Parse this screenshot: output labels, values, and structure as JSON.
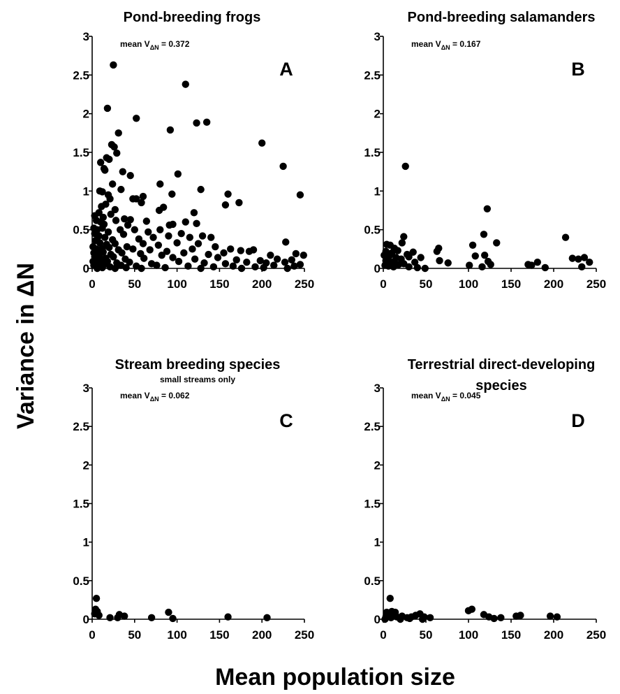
{
  "figure": {
    "xlabel": "Mean population size",
    "ylabel": "Variance in ΔN"
  },
  "chart_data": [
    {
      "type": "scatter",
      "title": "Pond-breeding frogs",
      "subtitle": "",
      "panel_label": "A",
      "mean_label": {
        "prefix": "mean V",
        "subscript": "ΔN",
        "value_text": " = 0.372"
      },
      "xlim": [
        0,
        250
      ],
      "ylim": [
        0,
        3
      ],
      "xticks": [
        0,
        50,
        100,
        150,
        200,
        250
      ],
      "yticks": [
        0,
        0.5,
        1,
        1.5,
        2,
        2.5,
        3
      ],
      "points": [
        [
          25,
          2.63
        ],
        [
          18,
          2.07
        ],
        [
          110,
          2.38
        ],
        [
          52,
          1.94
        ],
        [
          123,
          1.88
        ],
        [
          135,
          1.89
        ],
        [
          92,
          1.79
        ],
        [
          31,
          1.75
        ],
        [
          200,
          1.62
        ],
        [
          23,
          1.6
        ],
        [
          26,
          1.57
        ],
        [
          17,
          1.43
        ],
        [
          20,
          1.41
        ],
        [
          29,
          1.49
        ],
        [
          225,
          1.32
        ],
        [
          10,
          1.37
        ],
        [
          14,
          1.29
        ],
        [
          15,
          1.27
        ],
        [
          36,
          1.25
        ],
        [
          45,
          1.2
        ],
        [
          101,
          1.22
        ],
        [
          24,
          1.09
        ],
        [
          80,
          1.09
        ],
        [
          128,
          1.02
        ],
        [
          34,
          1.02
        ],
        [
          9,
          1.0
        ],
        [
          12,
          0.99
        ],
        [
          94,
          0.96
        ],
        [
          160,
          0.96
        ],
        [
          245,
          0.95
        ],
        [
          19,
          0.95
        ],
        [
          21,
          0.9
        ],
        [
          60,
          0.93
        ],
        [
          52,
          0.9
        ],
        [
          48,
          0.9
        ],
        [
          58,
          0.85
        ],
        [
          157,
          0.82
        ],
        [
          173,
          0.85
        ],
        [
          84,
          0.79
        ],
        [
          79,
          0.75
        ],
        [
          120,
          0.72
        ],
        [
          11,
          0.8
        ],
        [
          16,
          0.83
        ],
        [
          3,
          0.68
        ],
        [
          8,
          0.72
        ],
        [
          13,
          0.66
        ],
        [
          22,
          0.7
        ],
        [
          27,
          0.76
        ],
        [
          38,
          0.64
        ],
        [
          45,
          0.63
        ],
        [
          5,
          0.62
        ],
        [
          10,
          0.6
        ],
        [
          14,
          0.57
        ],
        [
          28,
          0.62
        ],
        [
          42,
          0.56
        ],
        [
          64,
          0.61
        ],
        [
          91,
          0.56
        ],
        [
          95,
          0.57
        ],
        [
          110,
          0.6
        ],
        [
          123,
          0.58
        ],
        [
          2,
          0.52
        ],
        [
          6,
          0.5
        ],
        [
          12,
          0.52
        ],
        [
          19,
          0.47
        ],
        [
          33,
          0.5
        ],
        [
          50,
          0.5
        ],
        [
          66,
          0.47
        ],
        [
          80,
          0.5
        ],
        [
          105,
          0.45
        ],
        [
          130,
          0.42
        ],
        [
          140,
          0.4
        ],
        [
          3,
          0.45
        ],
        [
          8,
          0.42
        ],
        [
          15,
          0.4
        ],
        [
          24,
          0.37
        ],
        [
          37,
          0.44
        ],
        [
          55,
          0.38
        ],
        [
          72,
          0.4
        ],
        [
          90,
          0.42
        ],
        [
          115,
          0.4
        ],
        [
          4,
          0.36
        ],
        [
          9,
          0.33
        ],
        [
          17,
          0.31
        ],
        [
          27,
          0.32
        ],
        [
          41,
          0.28
        ],
        [
          60,
          0.32
        ],
        [
          78,
          0.3
        ],
        [
          100,
          0.33
        ],
        [
          125,
          0.32
        ],
        [
          145,
          0.28
        ],
        [
          228,
          0.34
        ],
        [
          1,
          0.28
        ],
        [
          5,
          0.25
        ],
        [
          12,
          0.26
        ],
        [
          20,
          0.27
        ],
        [
          31,
          0.24
        ],
        [
          48,
          0.25
        ],
        [
          68,
          0.24
        ],
        [
          88,
          0.22
        ],
        [
          118,
          0.25
        ],
        [
          163,
          0.25
        ],
        [
          175,
          0.23
        ],
        [
          190,
          0.24
        ],
        [
          2,
          0.2
        ],
        [
          7,
          0.19
        ],
        [
          13,
          0.21
        ],
        [
          22,
          0.18
        ],
        [
          35,
          0.2
        ],
        [
          57,
          0.19
        ],
        [
          82,
          0.17
        ],
        [
          108,
          0.2
        ],
        [
          137,
          0.18
        ],
        [
          155,
          0.2
        ],
        [
          185,
          0.22
        ],
        [
          210,
          0.17
        ],
        [
          240,
          0.19
        ],
        [
          249,
          0.17
        ],
        [
          3,
          0.15
        ],
        [
          9,
          0.14
        ],
        [
          16,
          0.13
        ],
        [
          25,
          0.15
        ],
        [
          39,
          0.12
        ],
        [
          61,
          0.13
        ],
        [
          95,
          0.14
        ],
        [
          121,
          0.12
        ],
        [
          148,
          0.14
        ],
        [
          170,
          0.11
        ],
        [
          198,
          0.1
        ],
        [
          218,
          0.12
        ],
        [
          235,
          0.11
        ],
        [
          1,
          0.09
        ],
        [
          5,
          0.08
        ],
        [
          11,
          0.1
        ],
        [
          18,
          0.09
        ],
        [
          29,
          0.07
        ],
        [
          44,
          0.08
        ],
        [
          70,
          0.06
        ],
        [
          102,
          0.09
        ],
        [
          132,
          0.07
        ],
        [
          157,
          0.06
        ],
        [
          182,
          0.08
        ],
        [
          205,
          0.07
        ],
        [
          227,
          0.08
        ],
        [
          245,
          0.05
        ],
        [
          2,
          0.04
        ],
        [
          8,
          0.03
        ],
        [
          14,
          0.05
        ],
        [
          21,
          0.02
        ],
        [
          34,
          0.04
        ],
        [
          52,
          0.03
        ],
        [
          76,
          0.04
        ],
        [
          113,
          0.03
        ],
        [
          143,
          0.02
        ],
        [
          166,
          0.03
        ],
        [
          192,
          0.02
        ],
        [
          214,
          0.04
        ],
        [
          238,
          0.03
        ],
        [
          6,
          0.0
        ],
        [
          12,
          0.01
        ],
        [
          27,
          0.0
        ],
        [
          40,
          0.01
        ],
        [
          58,
          0.0
        ],
        [
          86,
          0.01
        ],
        [
          128,
          0.0
        ],
        [
          176,
          0.0
        ],
        [
          202,
          0.01
        ],
        [
          230,
          0.0
        ]
      ]
    },
    {
      "type": "scatter",
      "title": "Pond-breeding salamanders",
      "subtitle": "",
      "panel_label": "B",
      "mean_label": {
        "prefix": "mean V",
        "subscript": "ΔN",
        "value_text": " = 0.167"
      },
      "xlim": [
        0,
        250
      ],
      "ylim": [
        0,
        3
      ],
      "xticks": [
        0,
        50,
        100,
        150,
        200,
        250
      ],
      "yticks": [
        0,
        0.5,
        1,
        1.5,
        2,
        2.5,
        3
      ],
      "points": [
        [
          26,
          1.32
        ],
        [
          122,
          0.77
        ],
        [
          118,
          0.44
        ],
        [
          214,
          0.4
        ],
        [
          24,
          0.41
        ],
        [
          4,
          0.31
        ],
        [
          8,
          0.3
        ],
        [
          22,
          0.33
        ],
        [
          65,
          0.26
        ],
        [
          63,
          0.22
        ],
        [
          105,
          0.3
        ],
        [
          133,
          0.33
        ],
        [
          13,
          0.26
        ],
        [
          17,
          0.23
        ],
        [
          3,
          0.22
        ],
        [
          10,
          0.2
        ],
        [
          28,
          0.18
        ],
        [
          35,
          0.21
        ],
        [
          1,
          0.17
        ],
        [
          7,
          0.16
        ],
        [
          15,
          0.14
        ],
        [
          21,
          0.12
        ],
        [
          30,
          0.15
        ],
        [
          44,
          0.14
        ],
        [
          108,
          0.16
        ],
        [
          119,
          0.17
        ],
        [
          222,
          0.13
        ],
        [
          229,
          0.12
        ],
        [
          236,
          0.14
        ],
        [
          3,
          0.1
        ],
        [
          9,
          0.08
        ],
        [
          13,
          0.09
        ],
        [
          24,
          0.06
        ],
        [
          37,
          0.08
        ],
        [
          66,
          0.1
        ],
        [
          76,
          0.07
        ],
        [
          123,
          0.09
        ],
        [
          170,
          0.05
        ],
        [
          181,
          0.08
        ],
        [
          242,
          0.08
        ],
        [
          2,
          0.04
        ],
        [
          6,
          0.03
        ],
        [
          18,
          0.05
        ],
        [
          30,
          0.02
        ],
        [
          40,
          0.01
        ],
        [
          101,
          0.04
        ],
        [
          116,
          0.02
        ],
        [
          126,
          0.05
        ],
        [
          174,
          0.04
        ],
        [
          190,
          0.01
        ],
        [
          12,
          0.02
        ],
        [
          49,
          0.0
        ],
        [
          233,
          0.02
        ]
      ]
    },
    {
      "type": "scatter",
      "title": "Stream breeding species",
      "subtitle": "small streams only",
      "panel_label": "C",
      "mean_label": {
        "prefix": "mean V",
        "subscript": "ΔN",
        "value_text": " = 0.062"
      },
      "xlim": [
        0,
        250
      ],
      "ylim": [
        0,
        3
      ],
      "xticks": [
        0,
        50,
        100,
        150,
        200,
        250
      ],
      "yticks": [
        0,
        0.5,
        1,
        1.5,
        2,
        2.5,
        3
      ],
      "points": [
        [
          5,
          0.27
        ],
        [
          4,
          0.13
        ],
        [
          6,
          0.1
        ],
        [
          3,
          0.07
        ],
        [
          8,
          0.05
        ],
        [
          32,
          0.06
        ],
        [
          38,
          0.04
        ],
        [
          90,
          0.09
        ],
        [
          21,
          0.02
        ],
        [
          70,
          0.02
        ],
        [
          95,
          0.01
        ],
        [
          160,
          0.03
        ],
        [
          206,
          0.02
        ],
        [
          30,
          0.02
        ]
      ]
    },
    {
      "type": "scatter",
      "title": "Terrestrial direct-developing",
      "subtitle": "species",
      "panel_label": "D",
      "mean_label": {
        "prefix": "mean V",
        "subscript": "ΔN",
        "value_text": " = 0.045"
      },
      "xlim": [
        0,
        250
      ],
      "ylim": [
        0,
        3
      ],
      "xticks": [
        0,
        50,
        100,
        150,
        200,
        250
      ],
      "yticks": [
        0,
        0.5,
        1,
        1.5,
        2,
        2.5,
        3
      ],
      "points": [
        [
          8,
          0.27
        ],
        [
          4,
          0.09
        ],
        [
          10,
          0.1
        ],
        [
          14,
          0.09
        ],
        [
          6,
          0.06
        ],
        [
          12,
          0.05
        ],
        [
          3,
          0.03
        ],
        [
          9,
          0.02
        ],
        [
          16,
          0.03
        ],
        [
          22,
          0.04
        ],
        [
          28,
          0.02
        ],
        [
          33,
          0.03
        ],
        [
          38,
          0.05
        ],
        [
          43,
          0.07
        ],
        [
          48,
          0.03
        ],
        [
          55,
          0.02
        ],
        [
          31,
          0.01
        ],
        [
          100,
          0.11
        ],
        [
          104,
          0.13
        ],
        [
          118,
          0.06
        ],
        [
          124,
          0.03
        ],
        [
          130,
          0.01
        ],
        [
          138,
          0.02
        ],
        [
          156,
          0.04
        ],
        [
          161,
          0.05
        ],
        [
          196,
          0.04
        ],
        [
          204,
          0.03
        ],
        [
          2,
          0.0
        ],
        [
          20,
          0.0
        ],
        [
          46,
          0.0
        ]
      ]
    }
  ]
}
